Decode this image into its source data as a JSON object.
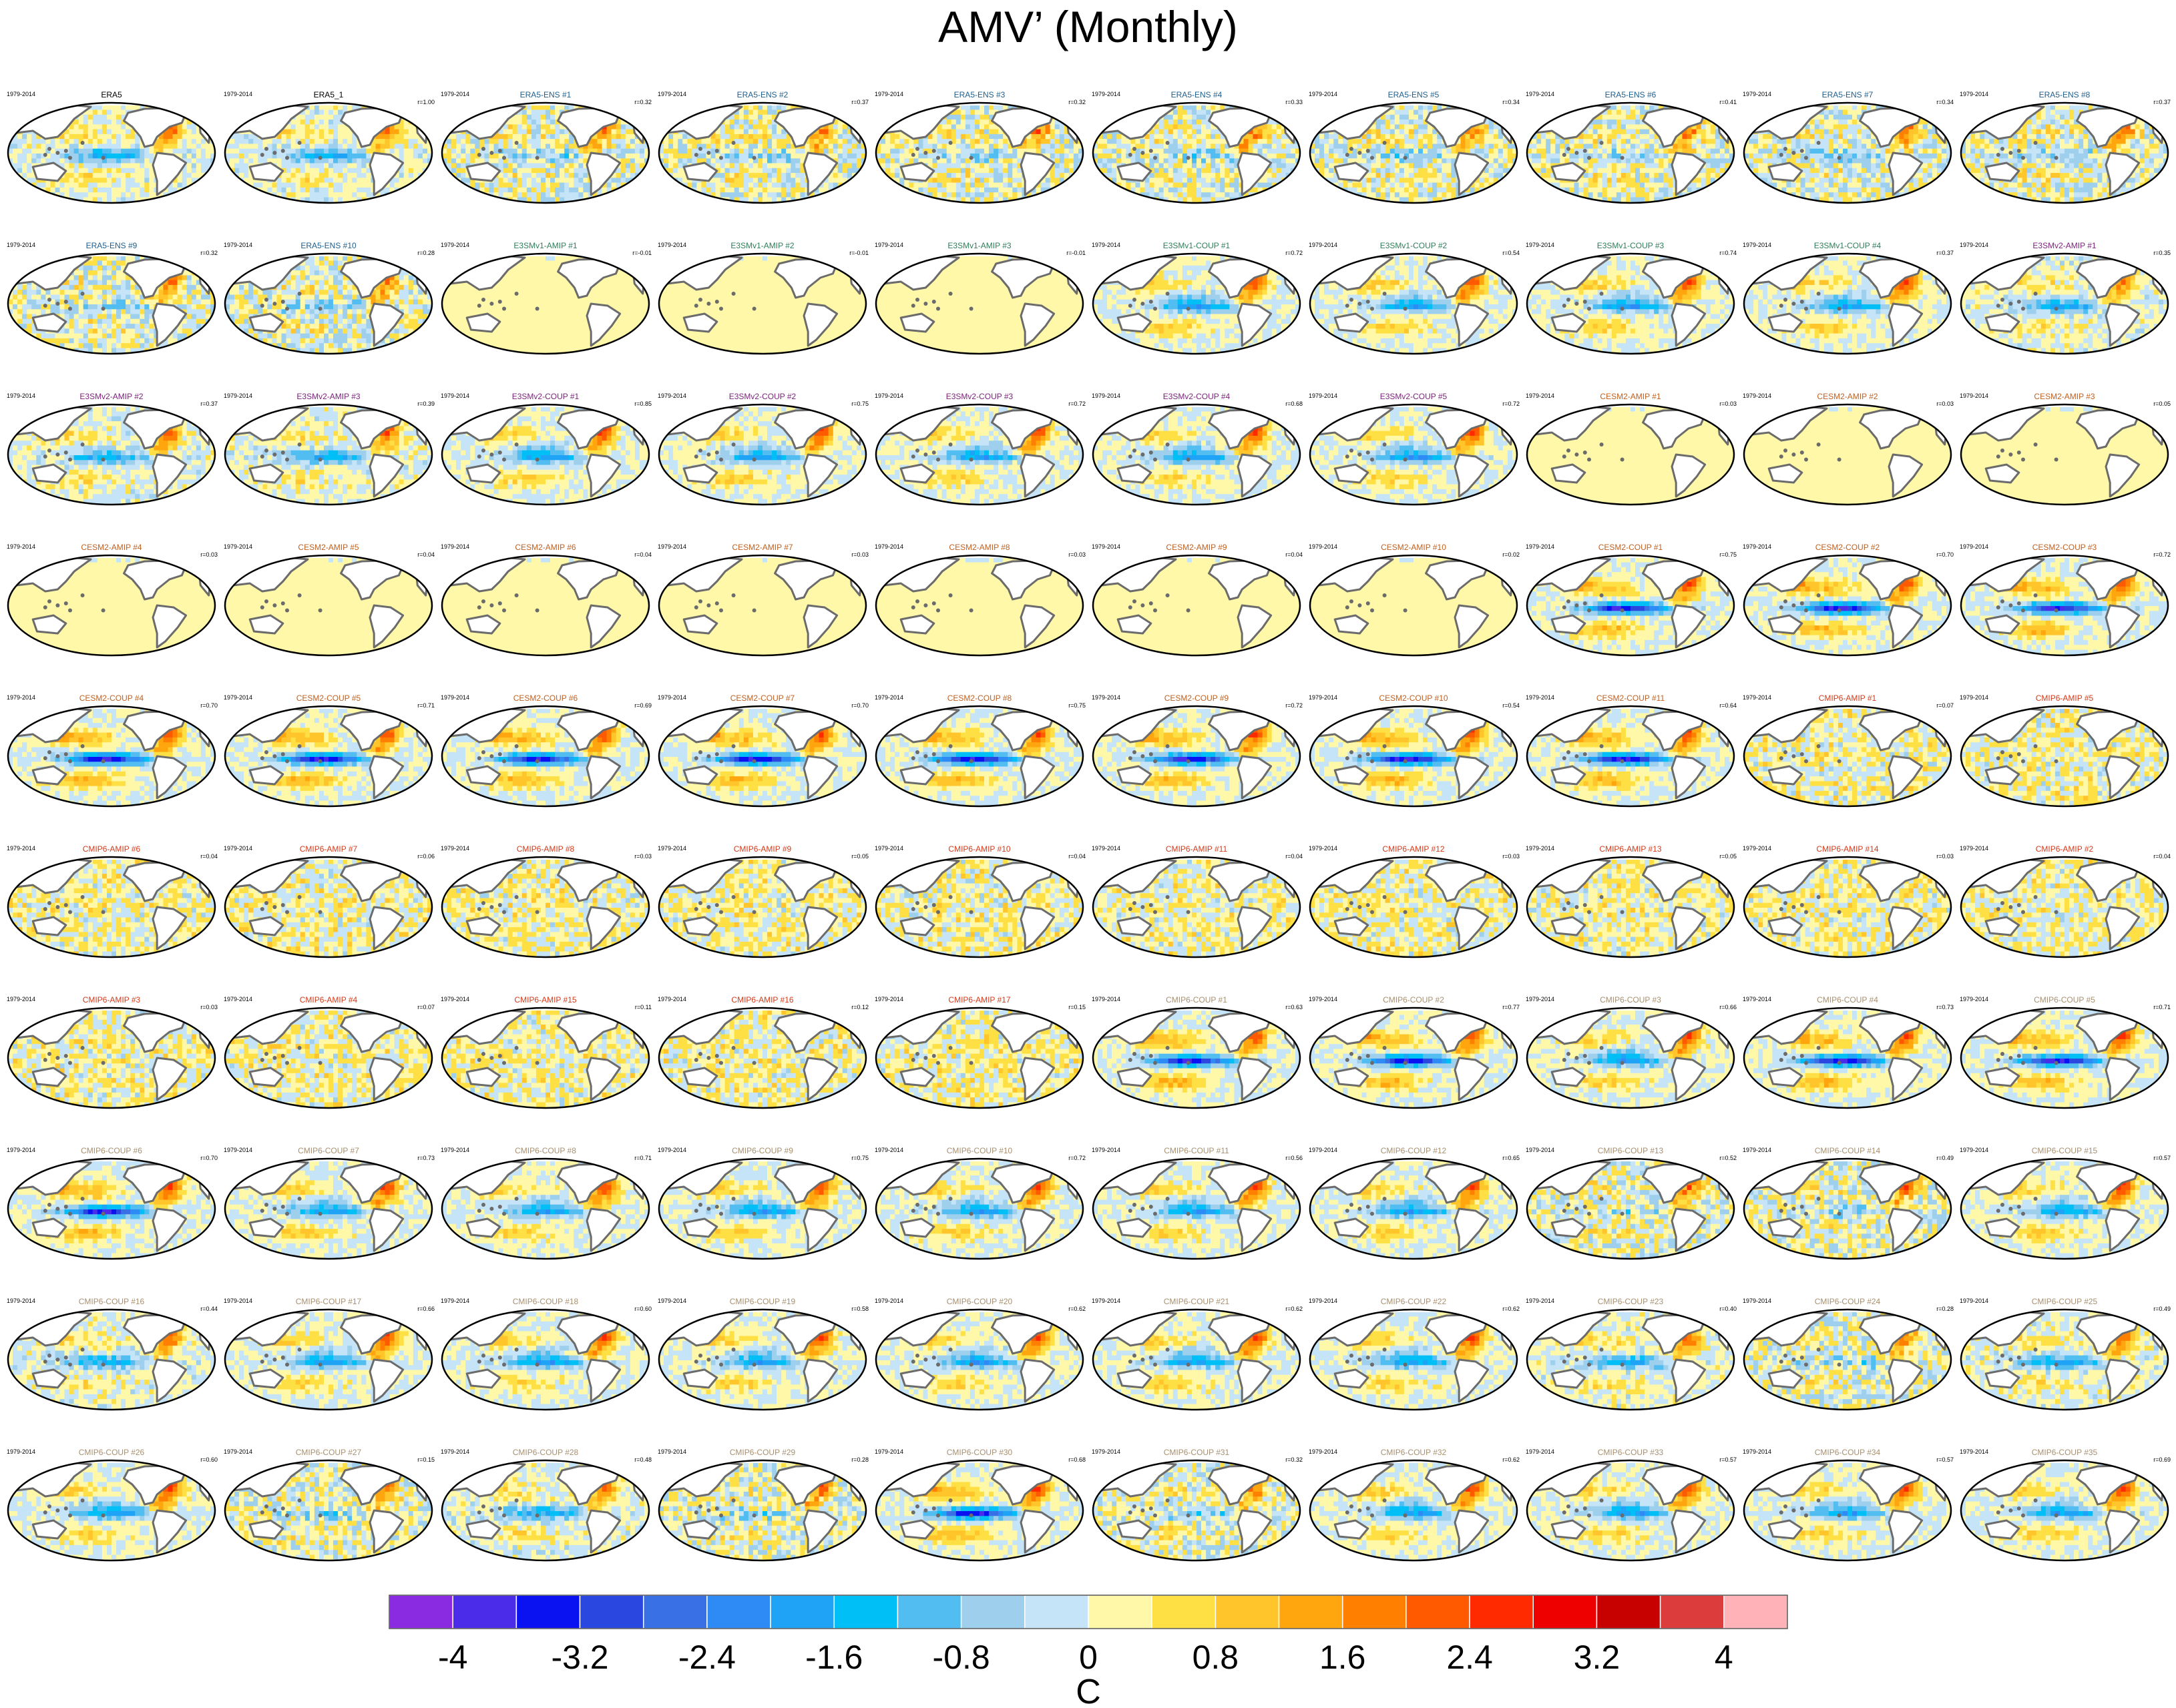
{
  "title": "AMV’ (Monthly)",
  "colors": {
    "land": "#6b6b6b",
    "outline": "#000000",
    "palette": [
      "#8a2be2",
      "#4b2ce8",
      "#0a12f2",
      "#2a47e0",
      "#3a70e6",
      "#2e8bf5",
      "#1ea3f6",
      "#00bff6",
      "#52bdf0",
      "#9ed0ee",
      "#c6e4f7",
      "#fff8a8",
      "#ffe044",
      "#ffc52a",
      "#ffa60e",
      "#ff8000",
      "#ff5a00",
      "#ff2a00",
      "#ee0000",
      "#c70000",
      "#dc3c3c",
      "#ffb3b8"
    ],
    "label_colors": {
      "obs": "#000000",
      "ens": "#1f5f8f",
      "e3v1": "#2e7d5b",
      "e3v2": "#7a1f7a",
      "cesm": "#c06020",
      "cmip_amip": "#d43a1a",
      "cmip_coup": "#a89070"
    }
  },
  "chart_data": {
    "type": "heatmap",
    "title": "AMV’ (Monthly)",
    "colorbar": {
      "label": "C",
      "ticks": [
        "-4",
        "-3.2",
        "-2.4",
        "-1.6",
        "-0.8",
        "0",
        "0.8",
        "1.6",
        "2.4",
        "3.2",
        "4"
      ],
      "range": [
        -4.4,
        4.4
      ],
      "levels": 22
    },
    "panels": [
      {
        "name": "ERA5",
        "period": "1979-2014",
        "r": "",
        "group": "obs",
        "pattern": "obs"
      },
      {
        "name": "ERA5_1",
        "period": "1979-2014",
        "r": "r=1.00",
        "group": "obs",
        "pattern": "obs"
      },
      {
        "name": "ERA5-ENS   #1",
        "period": "1979-2014",
        "r": "r=0.32",
        "group": "ens",
        "pattern": "ens"
      },
      {
        "name": "ERA5-ENS   #2",
        "period": "1979-2014",
        "r": "r=0.37",
        "group": "ens",
        "pattern": "ens"
      },
      {
        "name": "ERA5-ENS   #3",
        "period": "1979-2014",
        "r": "r=0.32",
        "group": "ens",
        "pattern": "ens"
      },
      {
        "name": "ERA5-ENS   #4",
        "period": "1979-2014",
        "r": "r=0.33",
        "group": "ens",
        "pattern": "ens"
      },
      {
        "name": "ERA5-ENS   #5",
        "period": "1979-2014",
        "r": "r=0.34",
        "group": "ens",
        "pattern": "ens"
      },
      {
        "name": "ERA5-ENS   #6",
        "period": "1979-2014",
        "r": "r=0.41",
        "group": "ens",
        "pattern": "ens"
      },
      {
        "name": "ERA5-ENS   #7",
        "period": "1979-2014",
        "r": "r=0.34",
        "group": "ens",
        "pattern": "ens"
      },
      {
        "name": "ERA5-ENS   #8",
        "period": "1979-2014",
        "r": "r=0.37",
        "group": "ens",
        "pattern": "ens"
      },
      {
        "name": "ERA5-ENS   #9",
        "period": "1979-2014",
        "r": "r=0.32",
        "group": "ens",
        "pattern": "ens"
      },
      {
        "name": "ERA5-ENS   #10",
        "period": "1979-2014",
        "r": "r=0.28",
        "group": "ens",
        "pattern": "ens"
      },
      {
        "name": "E3SMv1-AMIP #1",
        "period": "1979-2014",
        "r": "r=-0.01",
        "group": "e3v1",
        "pattern": "amip"
      },
      {
        "name": "E3SMv1-AMIP #2",
        "period": "1979-2014",
        "r": "r=-0.01",
        "group": "e3v1",
        "pattern": "amip"
      },
      {
        "name": "E3SMv1-AMIP #3",
        "period": "1979-2014",
        "r": "r=-0.01",
        "group": "e3v1",
        "pattern": "amip"
      },
      {
        "name": "E3SMv1-COUP #1",
        "period": "1979-2014",
        "r": "r=0.72",
        "group": "e3v1",
        "pattern": "coup"
      },
      {
        "name": "E3SMv1-COUP #2",
        "period": "1979-2014",
        "r": "r=0.54",
        "group": "e3v1",
        "pattern": "coup"
      },
      {
        "name": "E3SMv1-COUP #3",
        "period": "1979-2014",
        "r": "r=0.74",
        "group": "e3v1",
        "pattern": "coup"
      },
      {
        "name": "E3SMv1-COUP #4",
        "period": "1979-2014",
        "r": "r=0.37",
        "group": "e3v1",
        "pattern": "coup"
      },
      {
        "name": "E3SMv2-AMIP #1",
        "period": "1979-2014",
        "r": "r=0.35",
        "group": "e3v2",
        "pattern": "obs"
      },
      {
        "name": "E3SMv2-AMIP #2",
        "period": "1979-2014",
        "r": "r=0.37",
        "group": "e3v2",
        "pattern": "obs"
      },
      {
        "name": "E3SMv2-AMIP #3",
        "period": "1979-2014",
        "r": "r=0.39",
        "group": "e3v2",
        "pattern": "obs"
      },
      {
        "name": "E3SMv2-COUP #1",
        "period": "1979-2014",
        "r": "r=0.85",
        "group": "e3v2",
        "pattern": "coup"
      },
      {
        "name": "E3SMv2-COUP #2",
        "period": "1979-2014",
        "r": "r=0.75",
        "group": "e3v2",
        "pattern": "coup"
      },
      {
        "name": "E3SMv2-COUP #3",
        "period": "1979-2014",
        "r": "r=0.72",
        "group": "e3v2",
        "pattern": "coup"
      },
      {
        "name": "E3SMv2-COUP #4",
        "period": "1979-2014",
        "r": "r=0.68",
        "group": "e3v2",
        "pattern": "coup"
      },
      {
        "name": "E3SMv2-COUP #5",
        "period": "1979-2014",
        "r": "r=0.72",
        "group": "e3v2",
        "pattern": "coup"
      },
      {
        "name": "CESM2-AMIP #1",
        "period": "1979-2014",
        "r": "r=0.03",
        "group": "cesm",
        "pattern": "amip"
      },
      {
        "name": "CESM2-AMIP #2",
        "period": "1979-2014",
        "r": "r=0.03",
        "group": "cesm",
        "pattern": "amip"
      },
      {
        "name": "CESM2-AMIP #3",
        "period": "1979-2014",
        "r": "r=0.05",
        "group": "cesm",
        "pattern": "amip"
      },
      {
        "name": "CESM2-AMIP #4",
        "period": "1979-2014",
        "r": "r=0.03",
        "group": "cesm",
        "pattern": "amip"
      },
      {
        "name": "CESM2-AMIP #5",
        "period": "1979-2014",
        "r": "r=0.04",
        "group": "cesm",
        "pattern": "amip"
      },
      {
        "name": "CESM2-AMIP #6",
        "period": "1979-2014",
        "r": "r=0.04",
        "group": "cesm",
        "pattern": "amip"
      },
      {
        "name": "CESM2-AMIP #7",
        "period": "1979-2014",
        "r": "r=0.03",
        "group": "cesm",
        "pattern": "amip"
      },
      {
        "name": "CESM2-AMIP #8",
        "period": "1979-2014",
        "r": "r=0.03",
        "group": "cesm",
        "pattern": "amip"
      },
      {
        "name": "CESM2-AMIP #9",
        "period": "1979-2014",
        "r": "r=0.04",
        "group": "cesm",
        "pattern": "amip"
      },
      {
        "name": "CESM2-AMIP #10",
        "period": "1979-2014",
        "r": "r=0.02",
        "group": "cesm",
        "pattern": "amip"
      },
      {
        "name": "CESM2-COUP #1",
        "period": "1979-2014",
        "r": "r=0.75",
        "group": "cesm",
        "pattern": "coupstrong"
      },
      {
        "name": "CESM2-COUP #2",
        "period": "1979-2014",
        "r": "r=0.70",
        "group": "cesm",
        "pattern": "coupstrong"
      },
      {
        "name": "CESM2-COUP #3",
        "period": "1979-2014",
        "r": "r=0.72",
        "group": "cesm",
        "pattern": "coupstrong"
      },
      {
        "name": "CESM2-COUP #4",
        "period": "1979-2014",
        "r": "r=0.70",
        "group": "cesm",
        "pattern": "coupstrong"
      },
      {
        "name": "CESM2-COUP #5",
        "period": "1979-2014",
        "r": "r=0.71",
        "group": "cesm",
        "pattern": "coupstrong"
      },
      {
        "name": "CESM2-COUP #6",
        "period": "1979-2014",
        "r": "r=0.69",
        "group": "cesm",
        "pattern": "coupstrong"
      },
      {
        "name": "CESM2-COUP #7",
        "period": "1979-2014",
        "r": "r=0.70",
        "group": "cesm",
        "pattern": "coupstrong"
      },
      {
        "name": "CESM2-COUP #8",
        "period": "1979-2014",
        "r": "r=0.75",
        "group": "cesm",
        "pattern": "coupstrong"
      },
      {
        "name": "CESM2-COUP #9",
        "period": "1979-2014",
        "r": "r=0.72",
        "group": "cesm",
        "pattern": "coupstrong"
      },
      {
        "name": "CESM2-COUP #10",
        "period": "1979-2014",
        "r": "r=0.54",
        "group": "cesm",
        "pattern": "coupstrong"
      },
      {
        "name": "CESM2-COUP #11",
        "period": "1979-2014",
        "r": "r=0.64",
        "group": "cesm",
        "pattern": "coupstrong"
      },
      {
        "name": "CMIP6-AMIP #1",
        "period": "1979-2014",
        "r": "r=0.07",
        "group": "cmip_amip",
        "pattern": "amipnoisy"
      },
      {
        "name": "CMIP6-AMIP #5",
        "period": "1979-2014",
        "r": "",
        "group": "cmip_amip",
        "pattern": "amipnoisy"
      },
      {
        "name": "CMIP6-AMIP #6",
        "period": "1979-2014",
        "r": "r=0.04",
        "group": "cmip_amip",
        "pattern": "amipnoisy"
      },
      {
        "name": "CMIP6-AMIP #7",
        "period": "1979-2014",
        "r": "r=0.06",
        "group": "cmip_amip",
        "pattern": "amipnoisy"
      },
      {
        "name": "CMIP6-AMIP #8",
        "period": "1979-2014",
        "r": "r=0.03",
        "group": "cmip_amip",
        "pattern": "amipnoisy"
      },
      {
        "name": "CMIP6-AMIP #9",
        "period": "1979-2014",
        "r": "r=0.05",
        "group": "cmip_amip",
        "pattern": "amipnoisy"
      },
      {
        "name": "CMIP6-AMIP #10",
        "period": "1979-2014",
        "r": "r=0.04",
        "group": "cmip_amip",
        "pattern": "amipnoisy"
      },
      {
        "name": "CMIP6-AMIP #11",
        "period": "1979-2014",
        "r": "r=0.04",
        "group": "cmip_amip",
        "pattern": "amipnoisy"
      },
      {
        "name": "CMIP6-AMIP #12",
        "period": "1979-2014",
        "r": "r=0.03",
        "group": "cmip_amip",
        "pattern": "amipnoisy"
      },
      {
        "name": "CMIP6-AMIP #13",
        "period": "1979-2014",
        "r": "r=0.05",
        "group": "cmip_amip",
        "pattern": "amipnoisy"
      },
      {
        "name": "CMIP6-AMIP #14",
        "period": "1979-2014",
        "r": "r=0.03",
        "group": "cmip_amip",
        "pattern": "amipnoisy"
      },
      {
        "name": "CMIP6-AMIP #2",
        "period": "1979-2014",
        "r": "r=0.04",
        "group": "cmip_amip",
        "pattern": "amipnoisy"
      },
      {
        "name": "CMIP6-AMIP #3",
        "period": "1979-2014",
        "r": "r=0.03",
        "group": "cmip_amip",
        "pattern": "amipnoisy"
      },
      {
        "name": "CMIP6-AMIP #4",
        "period": "1979-2014",
        "r": "r=0.07",
        "group": "cmip_amip",
        "pattern": "amipnoisy"
      },
      {
        "name": "CMIP6-AMIP #15",
        "period": "1979-2014",
        "r": "r=0.11",
        "group": "cmip_amip",
        "pattern": "amipnoisy"
      },
      {
        "name": "CMIP6-AMIP #16",
        "period": "1979-2014",
        "r": "r=0.12",
        "group": "cmip_amip",
        "pattern": "amipnoisy"
      },
      {
        "name": "CMIP6-AMIP #17",
        "period": "1979-2014",
        "r": "r=0.15",
        "group": "cmip_amip",
        "pattern": "amipnoisy"
      },
      {
        "name": "CMIP6-COUP #1",
        "period": "1979-2014",
        "r": "r=0.63",
        "group": "cmip_coup",
        "pattern": "coupstrong"
      },
      {
        "name": "CMIP6-COUP #2",
        "period": "1979-2014",
        "r": "r=0.77",
        "group": "cmip_coup",
        "pattern": "coupstrong"
      },
      {
        "name": "CMIP6-COUP #3",
        "period": "1979-2014",
        "r": "r=0.66",
        "group": "cmip_coup",
        "pattern": "coup"
      },
      {
        "name": "CMIP6-COUP #4",
        "period": "1979-2014",
        "r": "r=0.73",
        "group": "cmip_coup",
        "pattern": "coupstrong"
      },
      {
        "name": "CMIP6-COUP #5",
        "period": "1979-2014",
        "r": "r=0.71",
        "group": "cmip_coup",
        "pattern": "coupstrong"
      },
      {
        "name": "CMIP6-COUP #6",
        "period": "1979-2014",
        "r": "r=0.70",
        "group": "cmip_coup",
        "pattern": "coupstrong"
      },
      {
        "name": "CMIP6-COUP #7",
        "period": "1979-2014",
        "r": "r=0.73",
        "group": "cmip_coup",
        "pattern": "coup"
      },
      {
        "name": "CMIP6-COUP #8",
        "period": "1979-2014",
        "r": "r=0.71",
        "group": "cmip_coup",
        "pattern": "coup"
      },
      {
        "name": "CMIP6-COUP #9",
        "period": "1979-2014",
        "r": "r=0.75",
        "group": "cmip_coup",
        "pattern": "coup"
      },
      {
        "name": "CMIP6-COUP #10",
        "period": "1979-2014",
        "r": "r=0.72",
        "group": "cmip_coup",
        "pattern": "coup"
      },
      {
        "name": "CMIP6-COUP #11",
        "period": "1979-2014",
        "r": "r=0.56",
        "group": "cmip_coup",
        "pattern": "coup"
      },
      {
        "name": "CMIP6-COUP #12",
        "period": "1979-2014",
        "r": "r=0.65",
        "group": "cmip_coup",
        "pattern": "coup"
      },
      {
        "name": "CMIP6-COUP #13",
        "period": "1979-2014",
        "r": "r=0.52",
        "group": "cmip_coup",
        "pattern": "ens"
      },
      {
        "name": "CMIP6-COUP #14",
        "period": "1979-2014",
        "r": "r=0.49",
        "group": "cmip_coup",
        "pattern": "ens"
      },
      {
        "name": "CMIP6-COUP #15",
        "period": "1979-2014",
        "r": "r=0.57",
        "group": "cmip_coup",
        "pattern": "coup"
      },
      {
        "name": "CMIP6-COUP #16",
        "period": "1979-2014",
        "r": "r=0.44",
        "group": "cmip_coup",
        "pattern": "obs"
      },
      {
        "name": "CMIP6-COUP #17",
        "period": "1979-2014",
        "r": "r=0.66",
        "group": "cmip_coup",
        "pattern": "coup"
      },
      {
        "name": "CMIP6-COUP #18",
        "period": "1979-2014",
        "r": "r=0.60",
        "group": "cmip_coup",
        "pattern": "coup"
      },
      {
        "name": "CMIP6-COUP #19",
        "period": "1979-2014",
        "r": "r=0.58",
        "group": "cmip_coup",
        "pattern": "coup"
      },
      {
        "name": "CMIP6-COUP #20",
        "period": "1979-2014",
        "r": "r=0.62",
        "group": "cmip_coup",
        "pattern": "coup"
      },
      {
        "name": "CMIP6-COUP #21",
        "period": "1979-2014",
        "r": "r=0.62",
        "group": "cmip_coup",
        "pattern": "coup"
      },
      {
        "name": "CMIP6-COUP #22",
        "period": "1979-2014",
        "r": "r=0.62",
        "group": "cmip_coup",
        "pattern": "coup"
      },
      {
        "name": "CMIP6-COUP #23",
        "period": "1979-2014",
        "r": "r=0.40",
        "group": "cmip_coup",
        "pattern": "obs"
      },
      {
        "name": "CMIP6-COUP #24",
        "period": "1979-2014",
        "r": "r=0.28",
        "group": "cmip_coup",
        "pattern": "ens"
      },
      {
        "name": "CMIP6-COUP #25",
        "period": "1979-2014",
        "r": "r=0.49",
        "group": "cmip_coup",
        "pattern": "obs"
      },
      {
        "name": "CMIP6-COUP #26",
        "period": "1979-2014",
        "r": "r=0.60",
        "group": "cmip_coup",
        "pattern": "coup"
      },
      {
        "name": "CMIP6-COUP #27",
        "period": "1979-2014",
        "r": "r=0.15",
        "group": "cmip_coup",
        "pattern": "ens"
      },
      {
        "name": "CMIP6-COUP #28",
        "period": "1979-2014",
        "r": "r=0.48",
        "group": "cmip_coup",
        "pattern": "obs"
      },
      {
        "name": "CMIP6-COUP #29",
        "period": "1979-2014",
        "r": "r=0.28",
        "group": "cmip_coup",
        "pattern": "ens"
      },
      {
        "name": "CMIP6-COUP #30",
        "period": "1979-2014",
        "r": "r=0.68",
        "group": "cmip_coup",
        "pattern": "coupstrong"
      },
      {
        "name": "CMIP6-COUP #31",
        "period": "1979-2014",
        "r": "r=0.32",
        "group": "cmip_coup",
        "pattern": "ens"
      },
      {
        "name": "CMIP6-COUP #32",
        "period": "1979-2014",
        "r": "r=0.62",
        "group": "cmip_coup",
        "pattern": "coup"
      },
      {
        "name": "CMIP6-COUP #33",
        "period": "1979-2014",
        "r": "r=0.57",
        "group": "cmip_coup",
        "pattern": "coup"
      },
      {
        "name": "CMIP6-COUP #34",
        "period": "1979-2014",
        "r": "r=0.57",
        "group": "cmip_coup",
        "pattern": "coup"
      },
      {
        "name": "CMIP6-COUP #35",
        "period": "1979-2014",
        "r": "r=0.69",
        "group": "cmip_coup",
        "pattern": "coup"
      }
    ]
  }
}
